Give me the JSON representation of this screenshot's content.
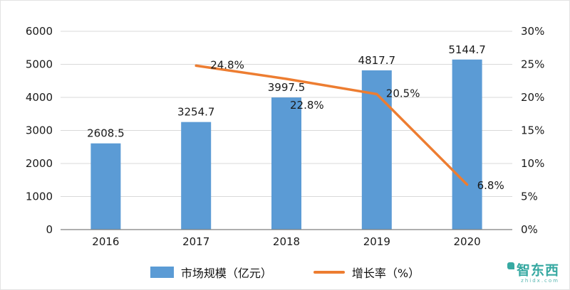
{
  "chart_data": {
    "type": "bar",
    "subtype": "combo-bar-line",
    "title": "",
    "categories": [
      "2016",
      "2017",
      "2018",
      "2019",
      "2020"
    ],
    "series": [
      {
        "name": "市场规模（亿元）",
        "type": "bar",
        "axis": "left",
        "color": "#5B9BD5",
        "values": [
          2608.5,
          3254.7,
          3997.5,
          4817.7,
          5144.7
        ],
        "labels": [
          "2608.5",
          "3254.7",
          "3997.5",
          "4817.7",
          "5144.7"
        ]
      },
      {
        "name": "增长率（%）",
        "type": "line",
        "axis": "right",
        "color": "#ED7D31",
        "values": [
          null,
          24.8,
          22.8,
          20.5,
          6.8
        ],
        "labels": [
          "",
          "24.8%",
          "22.8%",
          "20.5%",
          "6.8%"
        ]
      }
    ],
    "left_axis": {
      "min": 0,
      "max": 6000,
      "step": 1000,
      "ticks": [
        "0",
        "1000",
        "2000",
        "3000",
        "4000",
        "5000",
        "6000"
      ]
    },
    "right_axis": {
      "min": 0,
      "max": 30,
      "step": 5,
      "ticks": [
        "0%",
        "5%",
        "10%",
        "15%",
        "20%",
        "25%",
        "30%"
      ]
    },
    "grid": true,
    "legend_position": "bottom"
  },
  "colors": {
    "bar": "#5B9BD5",
    "line": "#ED7D31",
    "grid": "#D9D9D9",
    "axis": "#7F7F7F",
    "text": "#1a1a1a"
  },
  "watermark": {
    "text": "智东西",
    "subtext": "zhidx.com"
  }
}
